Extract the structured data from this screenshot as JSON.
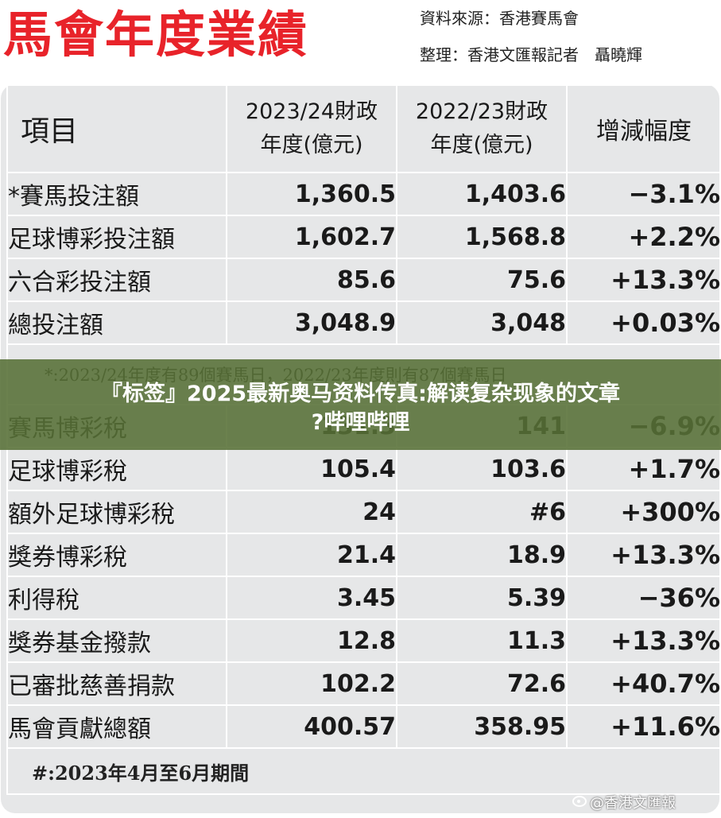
{
  "header": {
    "title": "馬會年度業績",
    "source": "資料來源：香港賽馬會",
    "editor": "整理：香港文匯報記者　聶曉輝"
  },
  "table": {
    "columns": [
      "項目",
      "2023/24財政",
      "年度(億元)",
      "2022/23財政",
      "年度(億元)",
      "增減幅度"
    ],
    "rows_top": [
      {
        "name": "*賽馬投注額",
        "y2324": "1,360.5",
        "y2223": "1,403.6",
        "change": "−3.1%",
        "dir": "neg"
      },
      {
        "name": "足球博彩投注額",
        "y2324": "1,602.7",
        "y2223": "1,568.8",
        "change": "+2.2%",
        "dir": "pos"
      },
      {
        "name": "六合彩投注額",
        "y2324": "85.6",
        "y2223": "75.6",
        "change": "+13.3%",
        "dir": "pos"
      },
      {
        "name": "總投注額",
        "y2324": "3,048.9",
        "y2223": "3,048",
        "change": "+0.03%",
        "dir": "pos"
      }
    ],
    "note_star": "*:2023/24年度有89個賽馬日，2022/23年度則有87個賽馬日",
    "rows_bottom": [
      {
        "name": "賽馬博彩稅",
        "y2324": "131.3",
        "y2223": "141",
        "change": "−6.9%",
        "dir": "neg"
      },
      {
        "name": "足球博彩稅",
        "y2324": "105.4",
        "y2223": "103.6",
        "change": "+1.7%",
        "dir": "pos"
      },
      {
        "name": "額外足球博彩稅",
        "y2324": "24",
        "y2223": "#6",
        "change": "+300%",
        "dir": "pos"
      },
      {
        "name": "獎券博彩稅",
        "y2324": "21.4",
        "y2223": "18.9",
        "change": "+13.3%",
        "dir": "pos"
      },
      {
        "name": "利得稅",
        "y2324": "3.45",
        "y2223": "5.39",
        "change": "−36%",
        "dir": "neg"
      },
      {
        "name": "獎券基金撥款",
        "y2324": "12.8",
        "y2223": "11.3",
        "change": "+13.3%",
        "dir": "pos"
      },
      {
        "name": "已審批慈善捐款",
        "y2324": "102.2",
        "y2223": "72.6",
        "change": "+40.7%",
        "dir": "pos"
      },
      {
        "name": "馬會貢獻總額",
        "y2324": "400.57",
        "y2223": "358.95",
        "change": "+11.6%",
        "dir": "pos"
      }
    ],
    "note_hash": "#:2023年4月至6月期間"
  },
  "overlay": {
    "line1": "『标签』2025最新奥马资料传真:解读复杂现象的文章",
    "line2": "?哔哩哔哩"
  },
  "watermark": "@香港文匯報",
  "colors": {
    "title": "#e8232a",
    "negative": "#e02027",
    "positive": "#1f9bb6",
    "table_bg": "#e6e7e8"
  }
}
